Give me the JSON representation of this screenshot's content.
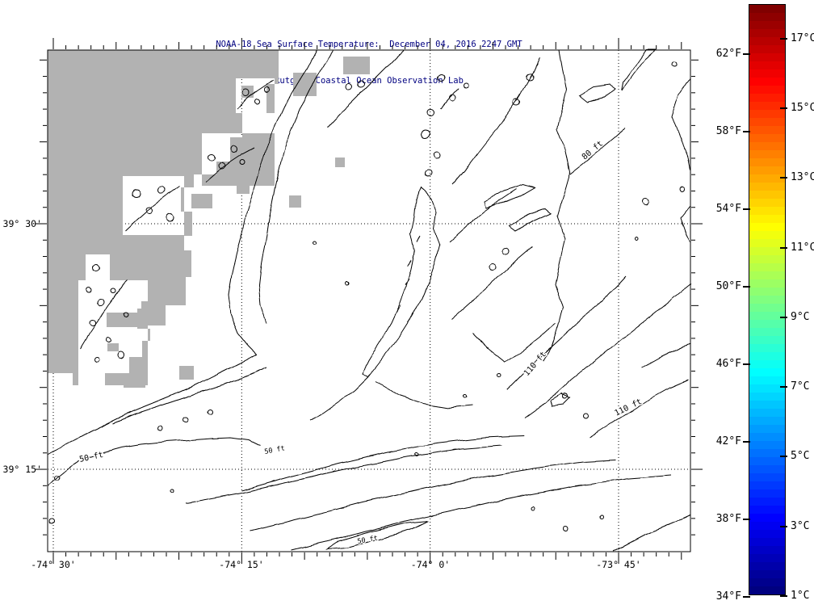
{
  "title": {
    "line1": "NOAA-18 Sea Surface Temperature:  December 04, 2016 2247 GMT",
    "line2": "Rutgers Coastal Ocean Observation Lab"
  },
  "colors": {
    "title_text": "#000080",
    "land_mask": "#b2b2b2",
    "contour": "#000000",
    "background": "#ffffff",
    "colorbar_top": "#7f0000",
    "colorbar_bottom": "#00007f"
  },
  "map": {
    "lat_labels": [
      "39° 30'",
      "39° 15'"
    ],
    "lon_labels": [
      "-74° 30'",
      "-74° 15'",
      "-74° 0'",
      "-73° 45'"
    ],
    "contour_labels": [
      {
        "text": "50 ft"
      },
      {
        "text": "50 ft"
      },
      {
        "text": "50 ft"
      },
      {
        "text": "80 ft"
      },
      {
        "text": "110 ft"
      },
      {
        "text": "110 ft"
      }
    ]
  },
  "colorbar": {
    "fahrenheit_labels": [
      "62°F",
      "58°F",
      "54°F",
      "50°F",
      "46°F",
      "42°F",
      "38°F",
      "34°F"
    ],
    "celsius_labels": [
      "17°C",
      "15°C",
      "13°C",
      "11°C",
      "9°C",
      "7°C",
      "5°C",
      "3°C",
      "1°C"
    ],
    "min_label": "34°F",
    "max_label": "62°F",
    "scale": "jet"
  }
}
